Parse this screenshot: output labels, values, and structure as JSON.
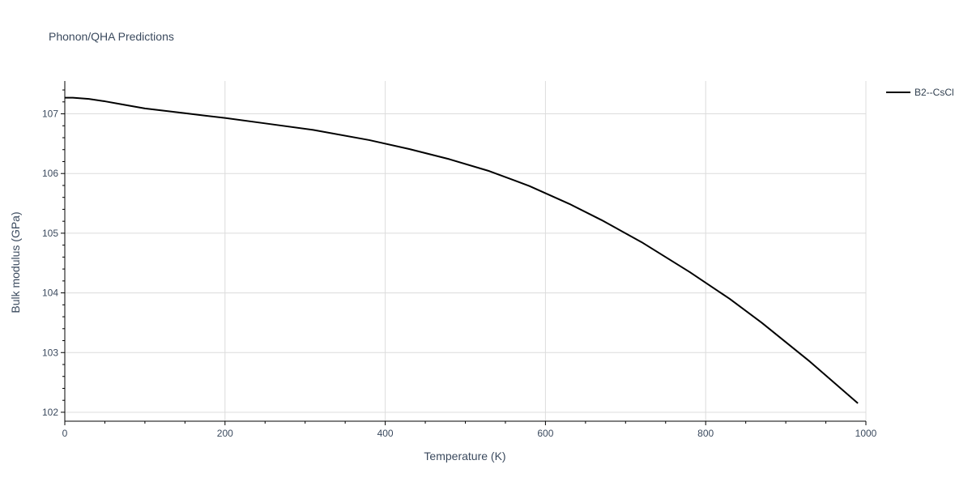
{
  "chart_data": {
    "type": "line",
    "title": "Phonon/QHA Predictions",
    "xlabel": "Temperature (K)",
    "ylabel": "Bulk modulus (GPa)",
    "xlim": [
      0,
      1000
    ],
    "ylim": [
      101.85,
      107.55
    ],
    "x_ticks": [
      0,
      200,
      400,
      600,
      800,
      1000
    ],
    "x_tick_labels": [
      "0",
      "200",
      "400",
      "600",
      "800",
      "1000"
    ],
    "y_ticks": [
      102,
      103,
      104,
      105,
      106,
      107
    ],
    "y_tick_labels": [
      "102",
      "103",
      "104",
      "105",
      "106",
      "107"
    ],
    "grid": true,
    "legend_position": "top-right",
    "series": [
      {
        "name": "B2--CsCl",
        "color": "#000000",
        "x": [
          0,
          10,
          30,
          50,
          75,
          100,
          150,
          200,
          250,
          310,
          380,
          430,
          480,
          530,
          580,
          630,
          670,
          720,
          780,
          830,
          870,
          930,
          990
        ],
        "y": [
          107.27,
          107.27,
          107.25,
          107.21,
          107.15,
          107.09,
          107.01,
          106.93,
          106.84,
          106.73,
          106.56,
          106.41,
          106.24,
          106.04,
          105.79,
          105.49,
          105.22,
          104.85,
          104.35,
          103.9,
          103.5,
          102.85,
          102.15
        ]
      }
    ]
  }
}
